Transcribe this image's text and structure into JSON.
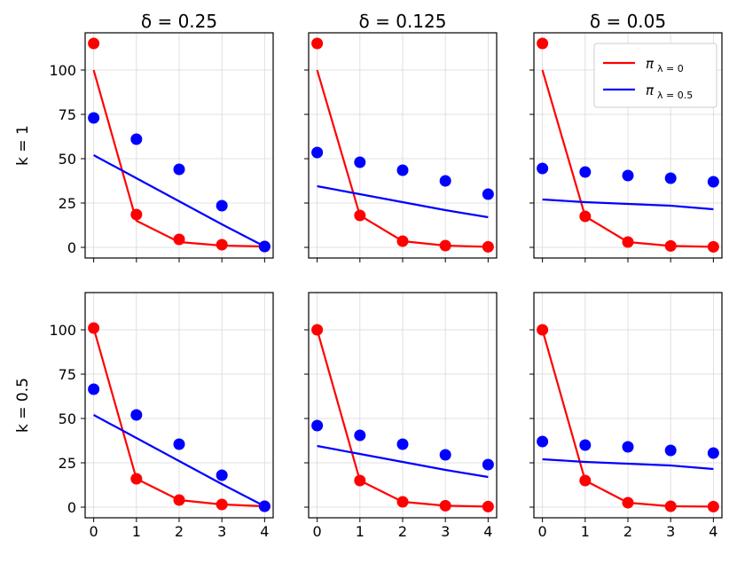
{
  "chart_data": {
    "type": "line",
    "title_prefix": "δ = ",
    "row_label_prefix": "k = ",
    "columns": [
      "0.25",
      "0.125",
      "0.05"
    ],
    "rows": [
      "1",
      "0.5"
    ],
    "x": [
      0,
      1,
      2,
      3,
      4
    ],
    "xticks": [
      "0",
      "1",
      "2",
      "3",
      "4"
    ],
    "yticks": [
      "0",
      "25",
      "50",
      "75",
      "100"
    ],
    "xlim": [
      -0.2,
      4.2
    ],
    "ylim": [
      -6,
      121
    ],
    "grid": true,
    "legend": {
      "placement": "top-right",
      "entries": [
        {
          "name": "π",
          "subscript": "λ = 0",
          "color": "#ff0000"
        },
        {
          "name": "π",
          "subscript": "λ = 0.5",
          "color": "#0000ff"
        }
      ]
    },
    "panels": [
      {
        "delta": "0.25",
        "k": "1",
        "series": [
          {
            "name": "π λ=0",
            "color": "#ff0000",
            "line": [
              100,
              15,
              3,
              1,
              0.5
            ],
            "points": [
              115,
              18.5,
              4.5,
              1.5,
              0.5
            ]
          },
          {
            "name": "π λ=0.5",
            "color": "#0000ff",
            "line": [
              52,
              39,
              26,
              13,
              0.5
            ],
            "points": [
              73,
              61,
              44,
              23.5,
              0.5
            ]
          }
        ]
      },
      {
        "delta": "0.125",
        "k": "1",
        "series": [
          {
            "name": "π λ=0",
            "color": "#ff0000",
            "line": [
              100,
              18,
              3.5,
              1,
              0.3
            ],
            "points": [
              115,
              18,
              3.5,
              1,
              0.3
            ]
          },
          {
            "name": "π λ=0.5",
            "color": "#0000ff",
            "line": [
              34.5,
              30,
              25.5,
              21,
              17
            ],
            "points": [
              53.5,
              48,
              43.5,
              37.5,
              30
            ]
          }
        ]
      },
      {
        "delta": "0.05",
        "k": "1",
        "series": [
          {
            "name": "π λ=0",
            "color": "#ff0000",
            "line": [
              100,
              17.5,
              3,
              0.8,
              0.3
            ],
            "points": [
              115,
              17.5,
              3,
              0.8,
              0.3
            ]
          },
          {
            "name": "π λ=0.5",
            "color": "#0000ff",
            "line": [
              27,
              25.5,
              24.5,
              23.5,
              21.5
            ],
            "points": [
              44.5,
              42.5,
              40.5,
              39,
              37
            ]
          }
        ]
      },
      {
        "delta": "0.25",
        "k": "0.5",
        "series": [
          {
            "name": "π λ=0",
            "color": "#ff0000",
            "line": [
              101,
              16,
              4,
              1.5,
              0.5
            ],
            "points": [
              101,
              16,
              4,
              1.5,
              0.5
            ]
          },
          {
            "name": "π λ=0.5",
            "color": "#0000ff",
            "line": [
              52,
              39,
              26,
              13,
              0.5
            ],
            "points": [
              66.5,
              52,
              35.5,
              18,
              0.5
            ]
          }
        ]
      },
      {
        "delta": "0.125",
        "k": "0.5",
        "series": [
          {
            "name": "π λ=0",
            "color": "#ff0000",
            "line": [
              100,
              15,
              3,
              0.8,
              0.3
            ],
            "points": [
              100,
              15,
              3,
              0.8,
              0.3
            ]
          },
          {
            "name": "π λ=0.5",
            "color": "#0000ff",
            "line": [
              34.5,
              30,
              25.5,
              21,
              17
            ],
            "points": [
              46,
              40.5,
              35.5,
              29.5,
              24
            ]
          }
        ]
      },
      {
        "delta": "0.05",
        "k": "0.5",
        "series": [
          {
            "name": "π λ=0",
            "color": "#ff0000",
            "line": [
              100,
              15,
              2.5,
              0.5,
              0.3
            ],
            "points": [
              100,
              15,
              2.5,
              0.5,
              0.3
            ]
          },
          {
            "name": "π λ=0.5",
            "color": "#0000ff",
            "line": [
              27,
              25.5,
              24.5,
              23.5,
              21.5
            ],
            "points": [
              37,
              35,
              34,
              32,
              30.5
            ]
          }
        ]
      }
    ]
  }
}
